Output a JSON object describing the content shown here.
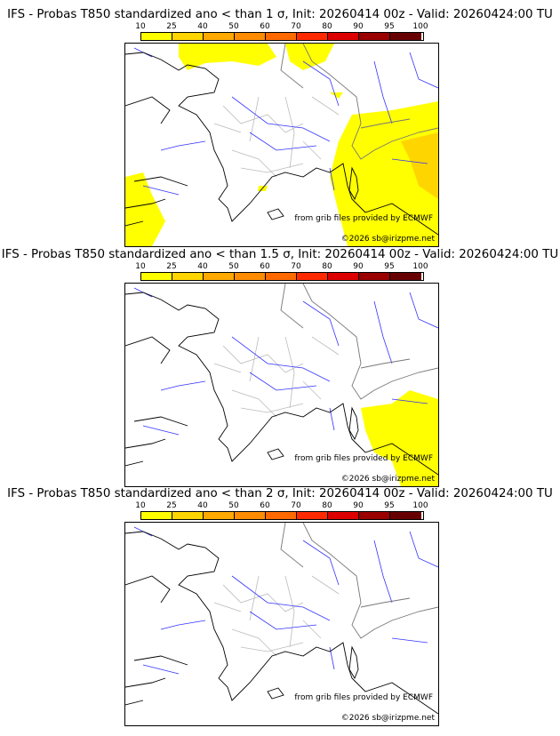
{
  "colorbar": {
    "ticks": [
      "10",
      "25",
      "40",
      "50",
      "60",
      "70",
      "80",
      "90",
      "95",
      "100"
    ],
    "colors": [
      "#ffff00",
      "#ffd500",
      "#ffaa00",
      "#ff8c00",
      "#ff6a00",
      "#ff2a00",
      "#dd0000",
      "#9a0000",
      "#660000"
    ]
  },
  "panels": [
    {
      "title": "IFS - Probas T850  standardized ano < than 1 σ, Init: 20260414 00z - Valid: 20260424:00 TU",
      "coverage": "large"
    },
    {
      "title": "IFS - Probas T850  standardized ano < than 1.5 σ, Init: 20260414 00z - Valid: 20260424:00 TU",
      "coverage": "medium"
    },
    {
      "title": "IFS - Probas T850  standardized ano < than 2 σ, Init: 20260414 00z - Valid: 20260424:00 TU",
      "coverage": "none"
    }
  ],
  "credits": {
    "source": "from grib files provided by ECMWF",
    "copyright": "©2026 sb@irizpme.net"
  }
}
